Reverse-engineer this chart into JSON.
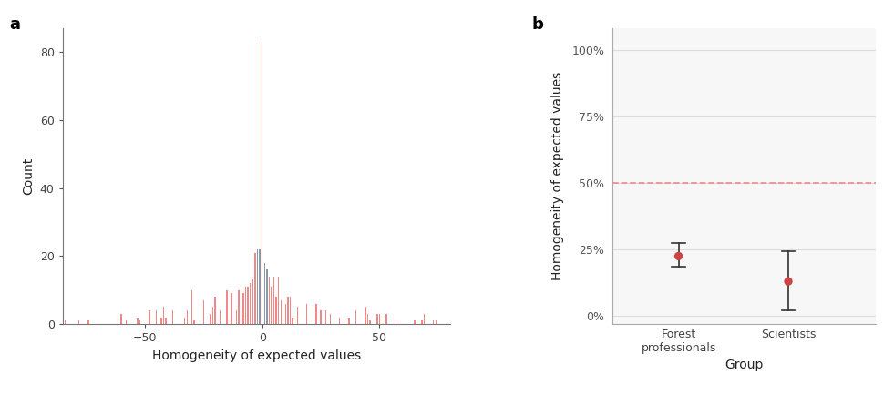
{
  "panel_a_label": "a",
  "panel_b_label": "b",
  "hist_xlabel": "Homogeneity of expected values",
  "hist_ylabel": "Count",
  "hist_xlim": [
    -85,
    80
  ],
  "hist_ylim": [
    0,
    87
  ],
  "hist_yticks": [
    0,
    20,
    40,
    60,
    80
  ],
  "hist_xticks": [
    -50,
    0,
    50
  ],
  "hist_color_pink": "#F08888",
  "hist_color_grey": "#8899AA",
  "dot_ylabel": "Homogeneity of expected values",
  "dot_xlabel": "Group",
  "dot_groups": [
    "Forest\nprofessionals",
    "Scientists"
  ],
  "dot_means": [
    0.225,
    0.13
  ],
  "dot_ci_lower": [
    0.185,
    0.02
  ],
  "dot_ci_upper": [
    0.275,
    0.245
  ],
  "dot_color": "#CC4444",
  "dot_hline": 0.5,
  "dot_ylim": [
    -0.03,
    1.08
  ],
  "dot_yticks": [
    0.0,
    0.25,
    0.5,
    0.75,
    1.0
  ],
  "dot_ytick_labels": [
    "0%",
    "25%",
    "50%",
    "75%",
    "100%"
  ],
  "background_color": "#ffffff",
  "grid_color": "#dddddd",
  "panel_bg": "#f7f7f7"
}
